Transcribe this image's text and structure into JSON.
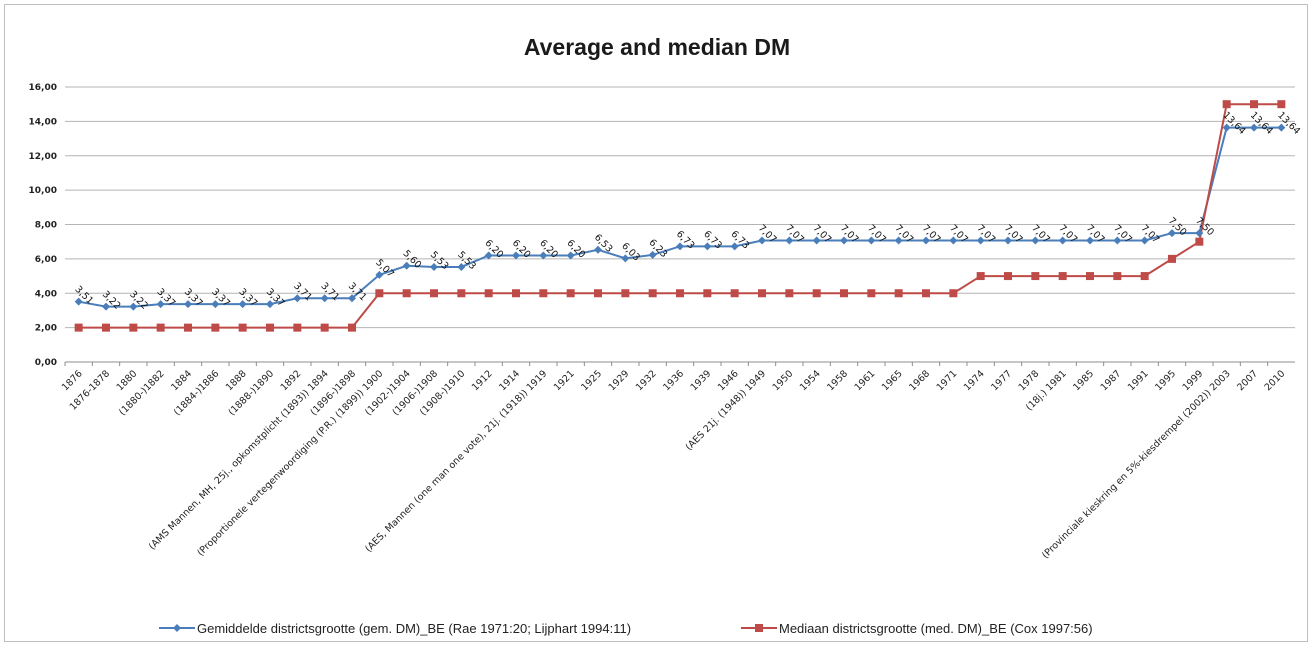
{
  "chart_data": {
    "type": "line",
    "title": "Average and median DM",
    "xlabel": "",
    "ylabel": "",
    "ylim": [
      0,
      16
    ],
    "yticks": [
      "0,00",
      "2,00",
      "4,00",
      "6,00",
      "8,00",
      "10,00",
      "12,00",
      "14,00",
      "16,00"
    ],
    "grid": true,
    "legend_position": "bottom",
    "categories": [
      "1876",
      "1876-1878",
      "1880",
      "(1880-)1882",
      "1884",
      "(1884-)1886",
      "1888",
      "(1888-)1890",
      "1892",
      "(AMS Mannen, MH, 25j., opkomstplicht (1893)) 1894",
      "(1896-)1898",
      "(Proportionele vertegenwoordiging (P.R.) (1899)) 1900",
      "(1902-)1904",
      "(1906-)1908",
      "(1908-)1910",
      "1912",
      "1914",
      "(AES, Mannen (one man one vote), 21j. (1918)) 1919",
      "1921",
      "1925",
      "1929",
      "1932",
      "1936",
      "1939",
      "1946",
      "(AES 21j. (1948)) 1949",
      "1950",
      "1954",
      "1958",
      "1961",
      "1965",
      "1968",
      "1971",
      "1974",
      "1977",
      "1978",
      "(18j.) 1981",
      "1985",
      "1987",
      "1991",
      "1995",
      "1999",
      "(Provinciale kieskring en 5%-kiesdrempel (2002)) 2003",
      "2007",
      "2010"
    ],
    "series": [
      {
        "name": "Gemiddelde districtsgrootte (gem. DM)_BE (Rae 1971:20; Lijphart 1994:11)",
        "color": "#4a7ebb",
        "marker": "diamond",
        "values": [
          3.51,
          3.22,
          3.22,
          3.37,
          3.37,
          3.37,
          3.37,
          3.37,
          3.71,
          3.71,
          3.71,
          5.07,
          5.6,
          5.53,
          5.53,
          6.2,
          6.2,
          6.2,
          6.2,
          6.53,
          6.03,
          6.23,
          6.73,
          6.73,
          6.73,
          7.07,
          7.07,
          7.07,
          7.07,
          7.07,
          7.07,
          7.07,
          7.07,
          7.07,
          7.07,
          7.07,
          7.07,
          7.07,
          7.07,
          7.07,
          7.5,
          7.5,
          13.64,
          13.64,
          13.64
        ],
        "labels": [
          "3,51",
          "3,22",
          "3,22",
          "3,37",
          "3,37",
          "3,37",
          "3,37",
          "3,37",
          "3,71",
          "3,71",
          "3,71",
          "5,07",
          "5,60",
          "5,53",
          "5,53",
          "6,20",
          "6,20",
          "6,20",
          "6,20",
          "6,53",
          "6,03",
          "6,23",
          "6,73",
          "6,73",
          "6,73",
          "7,07",
          "7,07",
          "7,07",
          "7,07",
          "7,07",
          "7,07",
          "7,07",
          "7,07",
          "7,07",
          "7,07",
          "7,07",
          "7,07",
          "7,07",
          "7,07",
          "7,07",
          "7,50",
          "7,50",
          "13,64",
          "13,64",
          "13,64"
        ]
      },
      {
        "name": "Mediaan districtsgrootte (med. DM)_BE (Cox 1997:56)",
        "color": "#be4b48",
        "marker": "square",
        "values": [
          2,
          2,
          2,
          2,
          2,
          2,
          2,
          2,
          2,
          2,
          2,
          4,
          4,
          4,
          4,
          4,
          4,
          4,
          4,
          4,
          4,
          4,
          4,
          4,
          4,
          4,
          4,
          4,
          4,
          4,
          4,
          4,
          4,
          5,
          5,
          5,
          5,
          5,
          5,
          5,
          6,
          7,
          15,
          15,
          15
        ]
      }
    ]
  }
}
